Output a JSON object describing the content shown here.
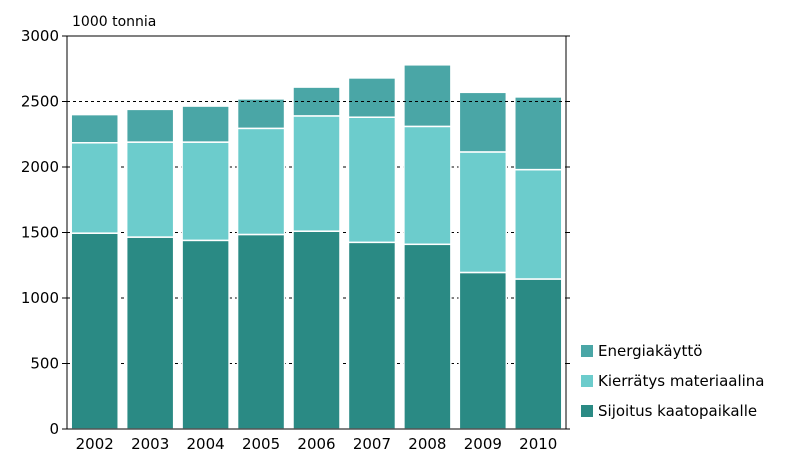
{
  "chart_data": {
    "type": "bar",
    "stacked": true,
    "unit_label": "1000 tonnia",
    "categories": [
      "2002",
      "2003",
      "2004",
      "2005",
      "2006",
      "2007",
      "2008",
      "2009",
      "2010"
    ],
    "series": [
      {
        "name": "Sijoitus kaatopaikalle",
        "color": "#2a8a84",
        "values": [
          1495,
          1465,
          1440,
          1485,
          1510,
          1425,
          1410,
          1195,
          1145
        ]
      },
      {
        "name": "Kierrätys materiaalina",
        "color": "#6ccccc",
        "values": [
          690,
          725,
          750,
          810,
          880,
          955,
          900,
          920,
          835
        ]
      },
      {
        "name": "Energiakäyttö",
        "color": "#4aa6a6",
        "values": [
          215,
          250,
          275,
          225,
          220,
          300,
          470,
          455,
          555
        ]
      }
    ],
    "ylim": [
      0,
      3000
    ],
    "yticks": [
      0,
      500,
      1000,
      1500,
      2000,
      2500,
      3000
    ],
    "reference_line": 2500,
    "legend_position": "bottom-right",
    "legend_order": [
      "Energiakäyttö",
      "Kierrätys materiaalina",
      "Sijoitus kaatopaikalle"
    ]
  }
}
